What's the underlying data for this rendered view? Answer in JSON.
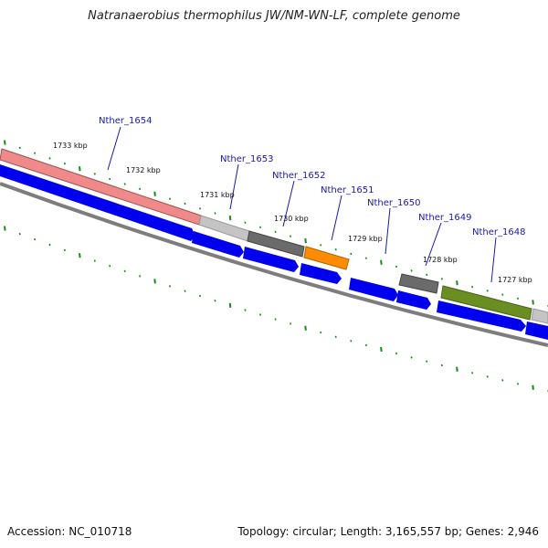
{
  "title": "Natranaerobius thermophilus JW/NM-WN-LF, complete genome",
  "footer": {
    "accession": "Accession: NC_010718",
    "summary": "Topology: circular; Length: 3,165,557 bp; Genes: 2,946"
  },
  "colors": {
    "backbone": "#888888",
    "cds": "#0000ee",
    "tick": "#1a8a1a",
    "label": "#1a1aa6"
  },
  "genes": [
    {
      "name": "Nther_1654",
      "color": "#f08080"
    },
    {
      "name": "",
      "color": "#c0c0c0"
    },
    {
      "name": "Nther_1653",
      "color": "#666666"
    },
    {
      "name": "Nther_1652",
      "color": "#ff8c00"
    },
    {
      "name": "Nther_1651",
      "color": ""
    },
    {
      "name": "Nther_1650",
      "color": "#666666"
    },
    {
      "name": "Nther_1649",
      "color": "#6b8e23"
    },
    {
      "name": "Nther_1648",
      "color": "#c0c0c0"
    }
  ],
  "kbp_labels": [
    "1733 kbp",
    "1732 kbp",
    "1731 kbp",
    "1730 kbp",
    "1729 kbp",
    "1728 kbp",
    "1727 kbp"
  ]
}
